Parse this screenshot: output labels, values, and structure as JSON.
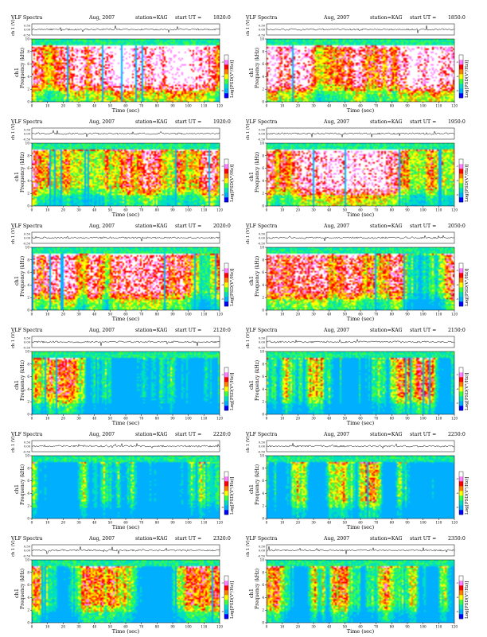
{
  "colors": {
    "scale": [
      "#0000ff",
      "#00b0ff",
      "#00e0c0",
      "#40ff40",
      "#ffff00",
      "#ff8000",
      "#ff0000",
      "#ff80ff",
      "#ffffff"
    ],
    "waveform": "#000000"
  },
  "header": {
    "title": "VLF Spectra",
    "date": "Aug, 2007",
    "station": "station=KAG",
    "start_prefix": "start  UT ="
  },
  "axes": {
    "top_ylabel": "ch 1 (V)",
    "top_ticks": [
      "0.00",
      "0.50",
      "-0.50"
    ],
    "main_ylabel_ch": "ch1",
    "main_ylabel": "Frequency  (kHz)",
    "y_ticks": [
      "0",
      "2",
      "4",
      "6",
      "8",
      "10"
    ],
    "x_ticks": [
      "0",
      "10",
      "20",
      "30",
      "40",
      "50",
      "60",
      "70",
      "80",
      "90",
      "100",
      "110",
      "120"
    ],
    "xlabel": "Time  (sec)",
    "colorbar_label": "Log[PSD(V²/Hz)]",
    "colorbar_ticks": [
      "-2",
      "-4",
      "-6"
    ]
  },
  "chart_data": {
    "type": "heatmap",
    "x_range": [
      0,
      120
    ],
    "y_range": [
      0,
      10
    ],
    "panels": [
      {
        "start_ut": "1820:0",
        "intensity": 0.95
      },
      {
        "start_ut": "1850:0",
        "intensity": 0.95
      },
      {
        "start_ut": "1920:0",
        "intensity": 0.85
      },
      {
        "start_ut": "1950:0",
        "intensity": 0.85
      },
      {
        "start_ut": "2020:0",
        "intensity": 0.7
      },
      {
        "start_ut": "2050:0",
        "intensity": 0.65
      },
      {
        "start_ut": "2120:0",
        "intensity": 0.5
      },
      {
        "start_ut": "2150:0",
        "intensity": 0.5
      },
      {
        "start_ut": "2220:0",
        "intensity": 0.45
      },
      {
        "start_ut": "2250:0",
        "intensity": 0.45
      },
      {
        "start_ut": "2320:0",
        "intensity": 0.45
      },
      {
        "start_ut": "2350:0",
        "intensity": 0.45
      }
    ]
  }
}
